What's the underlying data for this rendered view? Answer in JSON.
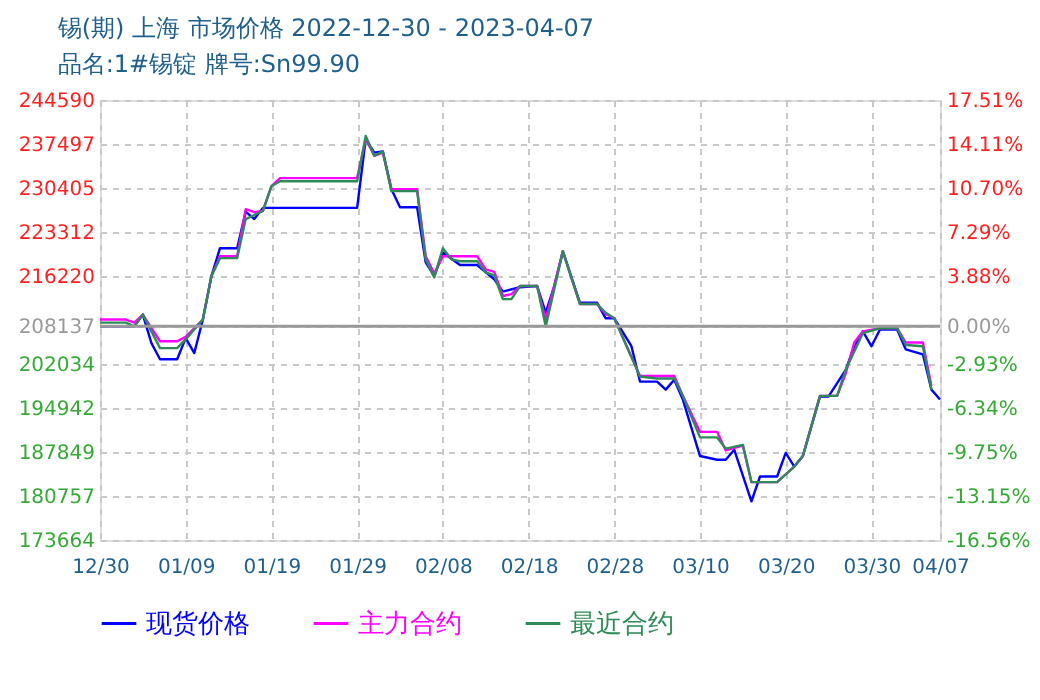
{
  "chart_data": {
    "type": "line",
    "title": "锡(期) 上海 市场价格 2022-12-30 - 2023-04-07",
    "subtitle": "品名:1#锡锭 牌号:Sn99.90",
    "ylim": [
      173664,
      244590
    ],
    "yticks": [
      173664,
      180757,
      187849,
      194942,
      202034,
      208137,
      216220,
      223312,
      230405,
      237497,
      244590
    ],
    "y2lim": [
      -16.56,
      17.51
    ],
    "y2ticks": [
      {
        "value": -16.56,
        "label": "-16.56%"
      },
      {
        "value": -13.15,
        "label": "-13.15%"
      },
      {
        "value": -9.75,
        "label": "-9.75%"
      },
      {
        "value": -6.34,
        "label": "-6.34%"
      },
      {
        "value": -2.93,
        "label": "-2.93%"
      },
      {
        "value": 0,
        "label": "0.00%"
      },
      {
        "value": 3.88,
        "label": "3.88%"
      },
      {
        "value": 7.29,
        "label": "7.29%"
      },
      {
        "value": 10.7,
        "label": "10.70%"
      },
      {
        "value": 14.11,
        "label": "14.11%"
      },
      {
        "value": 17.51,
        "label": "17.51%"
      }
    ],
    "xlim": [
      "2022-12-30",
      "2023-04-07"
    ],
    "xticks": [
      {
        "value": "2022-12-30",
        "label": "12/30"
      },
      {
        "value": "2023-01-09",
        "label": "01/09"
      },
      {
        "value": "2023-01-19",
        "label": "01/19"
      },
      {
        "value": "2023-01-29",
        "label": "01/29"
      },
      {
        "value": "2023-02-08",
        "label": "02/08"
      },
      {
        "value": "2023-02-18",
        "label": "02/18"
      },
      {
        "value": "2023-02-28",
        "label": "02/28"
      },
      {
        "value": "2023-03-10",
        "label": "03/10"
      },
      {
        "value": "2023-03-20",
        "label": "03/20"
      },
      {
        "value": "2023-03-30",
        "label": "03/30"
      },
      {
        "value": "2023-04-07",
        "label": "04/07"
      }
    ],
    "grid": true,
    "legend": "bottom",
    "marker": "none",
    "line_style": "solid",
    "ref_lines": [
      {
        "axis": "y",
        "value": 208137,
        "color": "#999999"
      }
    ],
    "series": [
      {
        "name": "现货价格",
        "color": "#0000ff",
        "x": [
          "2022-12-30",
          "2023-01-03",
          "2023-01-04",
          "2023-01-05",
          "2023-01-06",
          "2023-01-08",
          "2023-01-09",
          "2023-01-10",
          "2023-01-11",
          "2023-01-12",
          "2023-01-13",
          "2023-01-15",
          "2023-01-16",
          "2023-01-17",
          "2023-01-18",
          "2023-01-29",
          "2023-01-30",
          "2023-01-31",
          "2023-02-01",
          "2023-02-02",
          "2023-02-03",
          "2023-02-05",
          "2023-02-06",
          "2023-02-07",
          "2023-02-08",
          "2023-02-10",
          "2023-02-12",
          "2023-02-14",
          "2023-02-15",
          "2023-02-17",
          "2023-02-19",
          "2023-02-20",
          "2023-02-21",
          "2023-02-22",
          "2023-02-24",
          "2023-02-26",
          "2023-02-27",
          "2023-02-28",
          "2023-03-02",
          "2023-03-03",
          "2023-03-05",
          "2023-03-06",
          "2023-03-07",
          "2023-03-08",
          "2023-03-10",
          "2023-03-12",
          "2023-03-13",
          "2023-03-14",
          "2023-03-16",
          "2023-03-17",
          "2023-03-19",
          "2023-03-20",
          "2023-03-21",
          "2023-03-22",
          "2023-03-24",
          "2023-03-25",
          "2023-03-27",
          "2023-03-28",
          "2023-03-29",
          "2023-03-30",
          "2023-03-31",
          "2023-04-02",
          "2023-04-03",
          "2023-04-05",
          "2023-04-06",
          "2023-04-07"
        ],
        "values": [
          208100,
          208100,
          210000,
          205400,
          202800,
          202800,
          206200,
          203800,
          209200,
          216200,
          220700,
          220700,
          226600,
          225400,
          227200,
          227200,
          238300,
          236100,
          236300,
          230200,
          227300,
          227300,
          218400,
          216200,
          220000,
          218000,
          218000,
          215700,
          213700,
          214400,
          214600,
          210300,
          214600,
          220200,
          211900,
          211900,
          209400,
          209400,
          204900,
          199200,
          199200,
          197900,
          199500,
          196300,
          187200,
          186600,
          186600,
          188200,
          179900,
          183900,
          183900,
          187700,
          185500,
          187200,
          196800,
          196800,
          201100,
          204900,
          207300,
          204900,
          207600,
          207600,
          204400,
          203600,
          197900,
          196300
        ]
      },
      {
        "name": "主力合约",
        "color": "#ff00ff",
        "x": [
          "2022-12-30",
          "2023-01-02",
          "2023-01-03",
          "2023-01-04",
          "2023-01-06",
          "2023-01-08",
          "2023-01-09",
          "2023-01-11",
          "2023-01-12",
          "2023-01-13",
          "2023-01-15",
          "2023-01-16",
          "2023-01-17",
          "2023-01-18",
          "2023-01-19",
          "2023-01-20",
          "2023-01-29",
          "2023-01-30",
          "2023-01-31",
          "2023-02-01",
          "2023-02-02",
          "2023-02-05",
          "2023-02-06",
          "2023-02-07",
          "2023-02-08",
          "2023-02-12",
          "2023-02-13",
          "2023-02-14",
          "2023-02-15",
          "2023-02-16",
          "2023-02-17",
          "2023-02-19",
          "2023-02-20",
          "2023-02-22",
          "2023-02-24",
          "2023-02-26",
          "2023-02-27",
          "2023-02-28",
          "2023-03-03",
          "2023-03-07",
          "2023-03-08",
          "2023-03-10",
          "2023-03-12",
          "2023-03-13",
          "2023-03-15",
          "2023-03-16",
          "2023-03-19",
          "2023-03-21",
          "2023-03-22",
          "2023-03-24",
          "2023-03-26",
          "2023-03-27",
          "2023-03-28",
          "2023-03-29",
          "2023-03-31",
          "2023-04-02",
          "2023-04-03",
          "2023-04-05",
          "2023-04-06"
        ],
        "values": [
          209200,
          209200,
          208700,
          210000,
          205700,
          205700,
          206400,
          209200,
          216200,
          219400,
          219400,
          227000,
          226500,
          226700,
          230700,
          232000,
          232000,
          238300,
          235600,
          236100,
          230200,
          230200,
          219400,
          216600,
          219400,
          219400,
          217300,
          216900,
          213000,
          213300,
          214600,
          214600,
          209200,
          220200,
          211700,
          211700,
          210100,
          209400,
          200100,
          200100,
          196900,
          191100,
          191100,
          188100,
          188900,
          183000,
          183000,
          185500,
          187200,
          196900,
          196900,
          200500,
          205500,
          207300,
          207800,
          207800,
          205500,
          205500,
          198500
        ]
      },
      {
        "name": "最近合约",
        "color": "#2e8b57",
        "x": [
          "2022-12-30",
          "2023-01-02",
          "2023-01-03",
          "2023-01-04",
          "2023-01-06",
          "2023-01-08",
          "2023-01-09",
          "2023-01-11",
          "2023-01-12",
          "2023-01-13",
          "2023-01-15",
          "2023-01-16",
          "2023-01-18",
          "2023-01-19",
          "2023-01-20",
          "2023-01-29",
          "2023-01-30",
          "2023-01-31",
          "2023-02-01",
          "2023-02-02",
          "2023-02-05",
          "2023-02-06",
          "2023-02-07",
          "2023-02-08",
          "2023-02-09",
          "2023-02-10",
          "2023-02-12",
          "2023-02-13",
          "2023-02-14",
          "2023-02-15",
          "2023-02-16",
          "2023-02-17",
          "2023-02-19",
          "2023-02-20",
          "2023-02-22",
          "2023-02-24",
          "2023-02-26",
          "2023-02-27",
          "2023-02-28",
          "2023-03-03",
          "2023-03-05",
          "2023-03-07",
          "2023-03-08",
          "2023-03-10",
          "2023-03-12",
          "2023-03-13",
          "2023-03-15",
          "2023-03-16",
          "2023-03-19",
          "2023-03-21",
          "2023-03-22",
          "2023-03-24",
          "2023-03-26",
          "2023-03-27",
          "2023-03-29",
          "2023-03-31",
          "2023-04-02",
          "2023-04-03",
          "2023-04-05",
          "2023-04-06"
        ],
        "values": [
          208700,
          208700,
          208100,
          210000,
          204600,
          204600,
          206000,
          209200,
          216200,
          219100,
          219100,
          225400,
          226700,
          230700,
          231500,
          231500,
          238800,
          235600,
          236300,
          229900,
          229900,
          218900,
          216000,
          220700,
          218900,
          218600,
          218600,
          216800,
          216300,
          212500,
          212500,
          214600,
          214600,
          208100,
          220200,
          211700,
          211700,
          210300,
          209400,
          200000,
          199700,
          199700,
          196900,
          190200,
          190200,
          188400,
          189000,
          183000,
          183000,
          185500,
          187200,
          196900,
          196900,
          201100,
          207000,
          207800,
          207800,
          205100,
          204900,
          197900
        ]
      }
    ]
  }
}
